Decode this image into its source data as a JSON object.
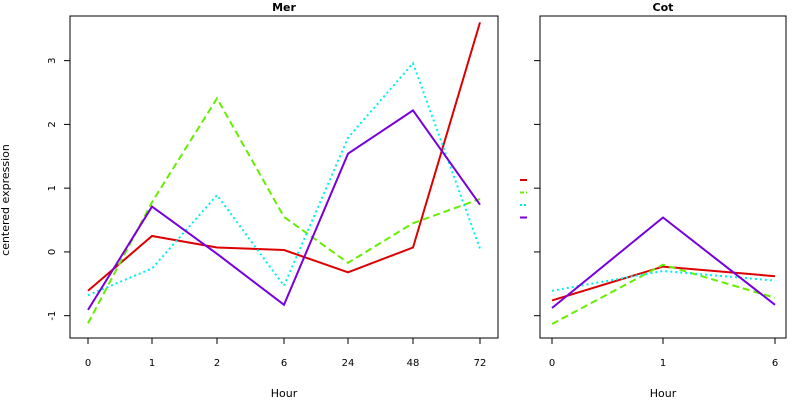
{
  "chart_data": [
    {
      "type": "line",
      "title": "Mer",
      "xlabel": "Hour",
      "ylabel": "centered expression",
      "categories": [
        "0",
        "1",
        "2",
        "6",
        "24",
        "48",
        "72"
      ],
      "yticks": [
        -1,
        0,
        1,
        2,
        3
      ],
      "ylim": [
        -1.35,
        3.7
      ],
      "series": [
        {
          "color": "#dd0000",
          "dash": "solid",
          "values": [
            -0.61,
            0.25,
            0.07,
            0.03,
            -0.32,
            0.07,
            3.6
          ]
        },
        {
          "color": "#66ee00",
          "dash": "dashed",
          "values": [
            -1.12,
            0.78,
            2.41,
            0.55,
            -0.17,
            0.45,
            0.83
          ]
        },
        {
          "color": "#00eeee",
          "dash": "dotted",
          "values": [
            -0.68,
            -0.26,
            0.89,
            -0.53,
            1.79,
            2.96,
            0.05
          ]
        },
        {
          "color": "#7700dd",
          "dash": "solid",
          "values": [
            -0.91,
            0.71,
            -0.03,
            -0.83,
            1.54,
            2.22,
            0.74
          ]
        }
      ]
    },
    {
      "type": "line",
      "title": "Cot",
      "xlabel": "Hour",
      "categories": [
        "0",
        "1",
        "6"
      ],
      "ylim": [
        -1.35,
        3.7
      ],
      "series": [
        {
          "color": "#dd0000",
          "dash": "solid",
          "values": [
            -0.76,
            -0.23,
            -0.38
          ]
        },
        {
          "color": "#66ee00",
          "dash": "dashed",
          "values": [
            -1.13,
            -0.2,
            -0.72
          ]
        },
        {
          "color": "#00eeee",
          "dash": "dotted",
          "values": [
            -0.61,
            -0.3,
            -0.45
          ]
        },
        {
          "color": "#7700dd",
          "dash": "solid",
          "values": [
            -0.88,
            0.54,
            -0.83
          ]
        }
      ]
    }
  ],
  "legend": {
    "placement": "between-panels",
    "colors": [
      "#dd0000",
      "#66ee00",
      "#00eeee",
      "#7700dd"
    ]
  }
}
